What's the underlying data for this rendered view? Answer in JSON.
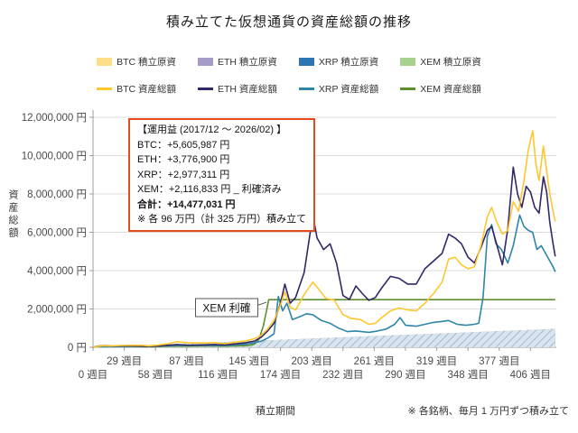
{
  "page": {
    "bottom_note": "※ 各銘柄、毎月 1 万円ずつ積み立て"
  },
  "colors": {
    "btc_area": "#FFDE8A",
    "eth_area": "#A79CC8",
    "xrp_area": "#2E75B6",
    "xem_area": "#A9D18E",
    "btc_line": "#FFC72C",
    "eth_line": "#352668",
    "xrp_line": "#2E86A8",
    "xem_line": "#5C8F2E",
    "hatch_bg": "#D9E4EE",
    "hatch_line": "#9FBCD4",
    "annotation_border": "#E8491D",
    "grid": "#DCDCDC",
    "axis": "#9C9C9C",
    "tick_text": "#4A4A4A"
  },
  "legend": {
    "row1": [
      {
        "id": "btc-principal",
        "label": "BTC 積立原資",
        "color_key": "btc_area"
      },
      {
        "id": "eth-principal",
        "label": "ETH 積立原資",
        "color_key": "eth_area"
      },
      {
        "id": "xrp-principal",
        "label": "XRP 積立原資",
        "color_key": "xrp_area"
      },
      {
        "id": "xem-principal",
        "label": "XEM 積立原資",
        "color_key": "xem_area"
      }
    ],
    "row2": [
      {
        "id": "btc-total",
        "label": "BTC 資産総額",
        "color_key": "btc_line"
      },
      {
        "id": "eth-total",
        "label": "ETH 資産総額",
        "color_key": "eth_line"
      },
      {
        "id": "xrp-total",
        "label": "XRP 資産総額",
        "color_key": "xrp_line"
      },
      {
        "id": "xem-total",
        "label": "XEM 資産総額",
        "color_key": "xem_line"
      }
    ]
  },
  "annotation": {
    "header": "【運用益 (2017/12 ～ 2026/02) 】",
    "btc": "BTC：+5,605,987 円",
    "eth": "ETH：+3,776,900 円",
    "xrp": "XRP：+2,977,311 円",
    "xem": "XEM：+2,116,833 円 _ 利確済み",
    "total": "合計：+14,477,031 円",
    "note": "※ 各 96 万円（計 325 万円）積み立て"
  },
  "chart_data": {
    "type": "line",
    "title": "積み立てた仮想通貨の資産総額の推移",
    "x_label": "積立期間",
    "y_label": "資産総額",
    "x_unit_suffix": " 週目",
    "y_unit_suffix": " 円",
    "x_range": [
      0,
      430
    ],
    "y_range": [
      0,
      12000000
    ],
    "y_tick_step": 2000000,
    "x_ticks": [
      0,
      29,
      58,
      87,
      116,
      145,
      174,
      203,
      232,
      261,
      290,
      319,
      348,
      377,
      406
    ],
    "grid": "horizontal",
    "legend_position": "top",
    "callout": {
      "label": "XEM 利確",
      "box_week": 95,
      "box_value": 2050000,
      "line_from_week": 148,
      "line_from_value": 2100000,
      "target_week": 161,
      "target_value": 2350000
    },
    "series": [
      {
        "id": "btc-principal",
        "name": "BTC 積立原資",
        "type": "area",
        "color_key": "btc_area",
        "points": [
          [
            0,
            0
          ],
          [
            429,
            960000
          ]
        ]
      },
      {
        "id": "eth-principal",
        "name": "ETH 積立原資",
        "type": "area",
        "color_key": "eth_area",
        "points": [
          [
            0,
            0
          ],
          [
            429,
            960000
          ]
        ]
      },
      {
        "id": "xem-principal",
        "name": "XEM 積立原資",
        "type": "area",
        "color_key": "xem_area",
        "points": [
          [
            0,
            0
          ],
          [
            160,
            370000
          ],
          [
            429,
            370000
          ]
        ]
      },
      {
        "id": "xrp-principal",
        "name": "XRP 積立原資",
        "type": "area",
        "color_key": "xrp_area",
        "hatch": true,
        "points": [
          [
            0,
            0
          ],
          [
            429,
            960000
          ]
        ]
      },
      {
        "id": "xem-total",
        "name": "XEM 資産総額",
        "type": "line",
        "color_key": "xem_line",
        "points": [
          [
            0,
            0
          ],
          [
            4,
            55000
          ],
          [
            8,
            65000
          ],
          [
            14,
            50000
          ],
          [
            26,
            45000
          ],
          [
            40,
            40000
          ],
          [
            52,
            35000
          ],
          [
            70,
            55000
          ],
          [
            88,
            60000
          ],
          [
            104,
            65000
          ],
          [
            122,
            60000
          ],
          [
            134,
            70000
          ],
          [
            144,
            90000
          ],
          [
            150,
            180000
          ],
          [
            154,
            420000
          ],
          [
            158,
            1100000
          ],
          [
            161,
            1900000
          ],
          [
            163,
            2486833
          ],
          [
            166,
            2486833
          ],
          [
            429,
            2486833
          ]
        ]
      },
      {
        "id": "xrp-total",
        "name": "XRP 資産総額",
        "type": "line",
        "color_key": "xrp_line",
        "points": [
          [
            0,
            0
          ],
          [
            4,
            45000
          ],
          [
            8,
            35000
          ],
          [
            16,
            40000
          ],
          [
            26,
            50000
          ],
          [
            36,
            55000
          ],
          [
            52,
            60000
          ],
          [
            70,
            80000
          ],
          [
            78,
            95000
          ],
          [
            104,
            105000
          ],
          [
            122,
            95000
          ],
          [
            142,
            160000
          ],
          [
            156,
            310000
          ],
          [
            162,
            480000
          ],
          [
            168,
            700000
          ],
          [
            172,
            2650000
          ],
          [
            176,
            1900000
          ],
          [
            180,
            2300000
          ],
          [
            185,
            1450000
          ],
          [
            192,
            1600000
          ],
          [
            198,
            1750000
          ],
          [
            204,
            1700000
          ],
          [
            212,
            1400000
          ],
          [
            220,
            1250000
          ],
          [
            228,
            1000000
          ],
          [
            236,
            820000
          ],
          [
            244,
            850000
          ],
          [
            256,
            780000
          ],
          [
            264,
            850000
          ],
          [
            272,
            950000
          ],
          [
            280,
            1200000
          ],
          [
            285,
            1550000
          ],
          [
            290,
            1150000
          ],
          [
            300,
            1100000
          ],
          [
            308,
            1200000
          ],
          [
            316,
            1300000
          ],
          [
            324,
            1350000
          ],
          [
            330,
            1400000
          ],
          [
            338,
            1200000
          ],
          [
            346,
            1150000
          ],
          [
            354,
            1200000
          ],
          [
            358,
            1250000
          ],
          [
            362,
            2600000
          ],
          [
            366,
            5800000
          ],
          [
            370,
            6400000
          ],
          [
            374,
            5400000
          ],
          [
            379,
            5100000
          ],
          [
            385,
            4400000
          ],
          [
            390,
            5300000
          ],
          [
            396,
            6900000
          ],
          [
            400,
            6300000
          ],
          [
            404,
            6100000
          ],
          [
            408,
            6000000
          ],
          [
            412,
            5100000
          ],
          [
            416,
            5300000
          ],
          [
            420,
            4900000
          ],
          [
            424,
            4500000
          ],
          [
            427,
            4200000
          ],
          [
            429,
            3937000
          ]
        ]
      },
      {
        "id": "eth-total",
        "name": "ETH 資産総額",
        "type": "line",
        "color_key": "eth_line",
        "points": [
          [
            0,
            0
          ],
          [
            5,
            60000
          ],
          [
            10,
            95000
          ],
          [
            16,
            80000
          ],
          [
            26,
            70000
          ],
          [
            36,
            75000
          ],
          [
            46,
            60000
          ],
          [
            52,
            48000
          ],
          [
            60,
            75000
          ],
          [
            70,
            110000
          ],
          [
            78,
            135000
          ],
          [
            88,
            110000
          ],
          [
            104,
            125000
          ],
          [
            112,
            145000
          ],
          [
            122,
            120000
          ],
          [
            132,
            180000
          ],
          [
            142,
            240000
          ],
          [
            150,
            330000
          ],
          [
            156,
            520000
          ],
          [
            162,
            850000
          ],
          [
            168,
            1250000
          ],
          [
            174,
            2300000
          ],
          [
            178,
            3300000
          ],
          [
            183,
            2300000
          ],
          [
            188,
            2600000
          ],
          [
            196,
            3900000
          ],
          [
            204,
            6900000
          ],
          [
            208,
            5700000
          ],
          [
            214,
            5100000
          ],
          [
            220,
            5400000
          ],
          [
            226,
            4400000
          ],
          [
            232,
            2700000
          ],
          [
            238,
            2500000
          ],
          [
            244,
            3200000
          ],
          [
            250,
            2800000
          ],
          [
            256,
            2450000
          ],
          [
            262,
            2600000
          ],
          [
            268,
            3100000
          ],
          [
            276,
            3700000
          ],
          [
            284,
            3600000
          ],
          [
            292,
            3300000
          ],
          [
            300,
            3300000
          ],
          [
            308,
            4100000
          ],
          [
            316,
            4500000
          ],
          [
            324,
            4900000
          ],
          [
            330,
            5900000
          ],
          [
            336,
            5700000
          ],
          [
            342,
            5400000
          ],
          [
            348,
            4700000
          ],
          [
            354,
            4400000
          ],
          [
            360,
            5200000
          ],
          [
            366,
            6100000
          ],
          [
            370,
            6300000
          ],
          [
            375,
            5300000
          ],
          [
            380,
            4300000
          ],
          [
            385,
            6200000
          ],
          [
            390,
            9400000
          ],
          [
            394,
            8000000
          ],
          [
            398,
            7300000
          ],
          [
            402,
            8400000
          ],
          [
            406,
            8100000
          ],
          [
            410,
            7300000
          ],
          [
            414,
            7000000
          ],
          [
            418,
            8900000
          ],
          [
            421,
            8100000
          ],
          [
            424,
            6500000
          ],
          [
            427,
            5400000
          ],
          [
            429,
            4737000
          ]
        ]
      },
      {
        "id": "btc-total",
        "name": "BTC 資産総額",
        "type": "line",
        "color_key": "btc_line",
        "points": [
          [
            0,
            0
          ],
          [
            5,
            55000
          ],
          [
            10,
            85000
          ],
          [
            16,
            75000
          ],
          [
            26,
            95000
          ],
          [
            36,
            110000
          ],
          [
            46,
            105000
          ],
          [
            52,
            75000
          ],
          [
            60,
            115000
          ],
          [
            70,
            190000
          ],
          [
            78,
            290000
          ],
          [
            88,
            240000
          ],
          [
            104,
            220000
          ],
          [
            112,
            250000
          ],
          [
            122,
            190000
          ],
          [
            132,
            270000
          ],
          [
            142,
            340000
          ],
          [
            150,
            450000
          ],
          [
            156,
            620000
          ],
          [
            162,
            950000
          ],
          [
            168,
            1400000
          ],
          [
            174,
            2200000
          ],
          [
            178,
            2900000
          ],
          [
            183,
            2100000
          ],
          [
            188,
            1950000
          ],
          [
            196,
            2750000
          ],
          [
            204,
            3400000
          ],
          [
            210,
            3000000
          ],
          [
            216,
            2550000
          ],
          [
            224,
            2450000
          ],
          [
            232,
            1700000
          ],
          [
            240,
            1500000
          ],
          [
            248,
            1450000
          ],
          [
            256,
            1200000
          ],
          [
            262,
            1250000
          ],
          [
            268,
            1550000
          ],
          [
            276,
            1900000
          ],
          [
            284,
            2050000
          ],
          [
            292,
            1950000
          ],
          [
            300,
            1900000
          ],
          [
            308,
            2300000
          ],
          [
            316,
            2800000
          ],
          [
            324,
            3400000
          ],
          [
            330,
            4600000
          ],
          [
            336,
            4700000
          ],
          [
            342,
            4300000
          ],
          [
            348,
            4100000
          ],
          [
            354,
            4200000
          ],
          [
            360,
            5300000
          ],
          [
            366,
            6800000
          ],
          [
            370,
            7300000
          ],
          [
            375,
            6500000
          ],
          [
            380,
            5900000
          ],
          [
            385,
            6100000
          ],
          [
            390,
            7600000
          ],
          [
            395,
            7100000
          ],
          [
            400,
            8700000
          ],
          [
            404,
            10300000
          ],
          [
            408,
            11300000
          ],
          [
            411,
            9600000
          ],
          [
            414,
            8700000
          ],
          [
            418,
            10500000
          ],
          [
            421,
            9200000
          ],
          [
            424,
            8000000
          ],
          [
            427,
            7100000
          ],
          [
            429,
            6566000
          ]
        ]
      }
    ]
  }
}
